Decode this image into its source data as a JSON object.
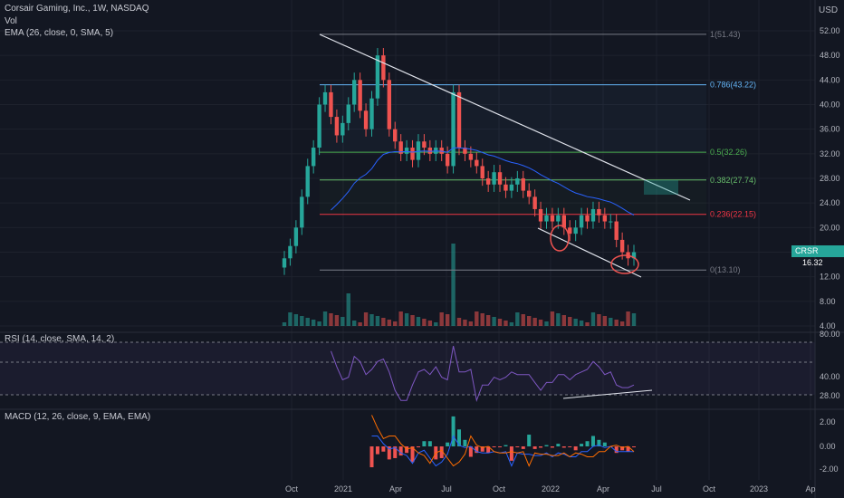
{
  "legend": {
    "symbol": "Corsair Gaming, Inc., 1W, NASDAQ",
    "volume": "Vol",
    "ema": "EMA (26, close, 0, SMA, 5)",
    "rsi": "RSI (14, close, SMA, 14, 2)",
    "macd": "MACD (12, 26, close, 9, EMA, EMA)"
  },
  "price_axis": {
    "currency": "USD",
    "labels": [
      "52.00",
      "48.00",
      "44.00",
      "40.00",
      "36.00",
      "32.00",
      "28.00",
      "24.00",
      "20.00",
      "16.00",
      "12.00",
      "8.00",
      "4.00"
    ],
    "last_ticker": "CRSR",
    "last_price": "16.32"
  },
  "rsi_axis": {
    "labels": [
      "80.00",
      "40.00",
      "28.00"
    ]
  },
  "macd_axis": {
    "labels": [
      "2.00",
      "0.00",
      "-2.00"
    ]
  },
  "time_axis": {
    "labels": [
      "Oct",
      "2021",
      "Apr",
      "Jul",
      "Oct",
      "2022",
      "Apr",
      "Jul",
      "Oct",
      "2023",
      "Ap"
    ]
  },
  "colors": {
    "bg": "#131722",
    "up": "#26a69a",
    "down": "#ef5350",
    "grid": "#1e222d",
    "fib1": "#787b86",
    "fib786": "#64b5f6",
    "fib5": "#4caf50",
    "fib382": "#66bb6a",
    "fib236": "#f23645",
    "ema": "#2962ff",
    "rsi": "#7e57c2",
    "macd": "#2962ff",
    "signal": "#ff6d00"
  },
  "chart_data": {
    "type": "candlestick",
    "title": "Corsair Gaming, Inc., 1W, NASDAQ",
    "ylim": [
      4,
      56
    ],
    "fib_levels": [
      {
        "label": "1(51.43)",
        "value": 51.43
      },
      {
        "label": "0.786(43.22)",
        "value": 43.22
      },
      {
        "label": "0.5(32.26)",
        "value": 32.26
      },
      {
        "label": "0.382(27.74)",
        "value": 27.74
      },
      {
        "label": "0.236(22.15)",
        "value": 22.15
      },
      {
        "label": "0(13.10)",
        "value": 13.1
      }
    ],
    "close_series": [
      15,
      17,
      20,
      25,
      30,
      33,
      40,
      42,
      38,
      35,
      37,
      40,
      44,
      39,
      36,
      41,
      48,
      44,
      36,
      34,
      32,
      33,
      31,
      34,
      33,
      32,
      33,
      32,
      30,
      42,
      33,
      32,
      31,
      30,
      28,
      27,
      29,
      27,
      26,
      27,
      28,
      26,
      25,
      23,
      21,
      22,
      21,
      22,
      20,
      19,
      20,
      22,
      21,
      23,
      22,
      21,
      21,
      18,
      16,
      15,
      16
    ],
    "volume_range": [
      0,
      100
    ],
    "rsi": {
      "ylim": [
        20,
        90
      ],
      "levels": [
        70,
        50,
        30
      ]
    },
    "macd": {
      "ylim": [
        -3,
        3
      ]
    }
  }
}
